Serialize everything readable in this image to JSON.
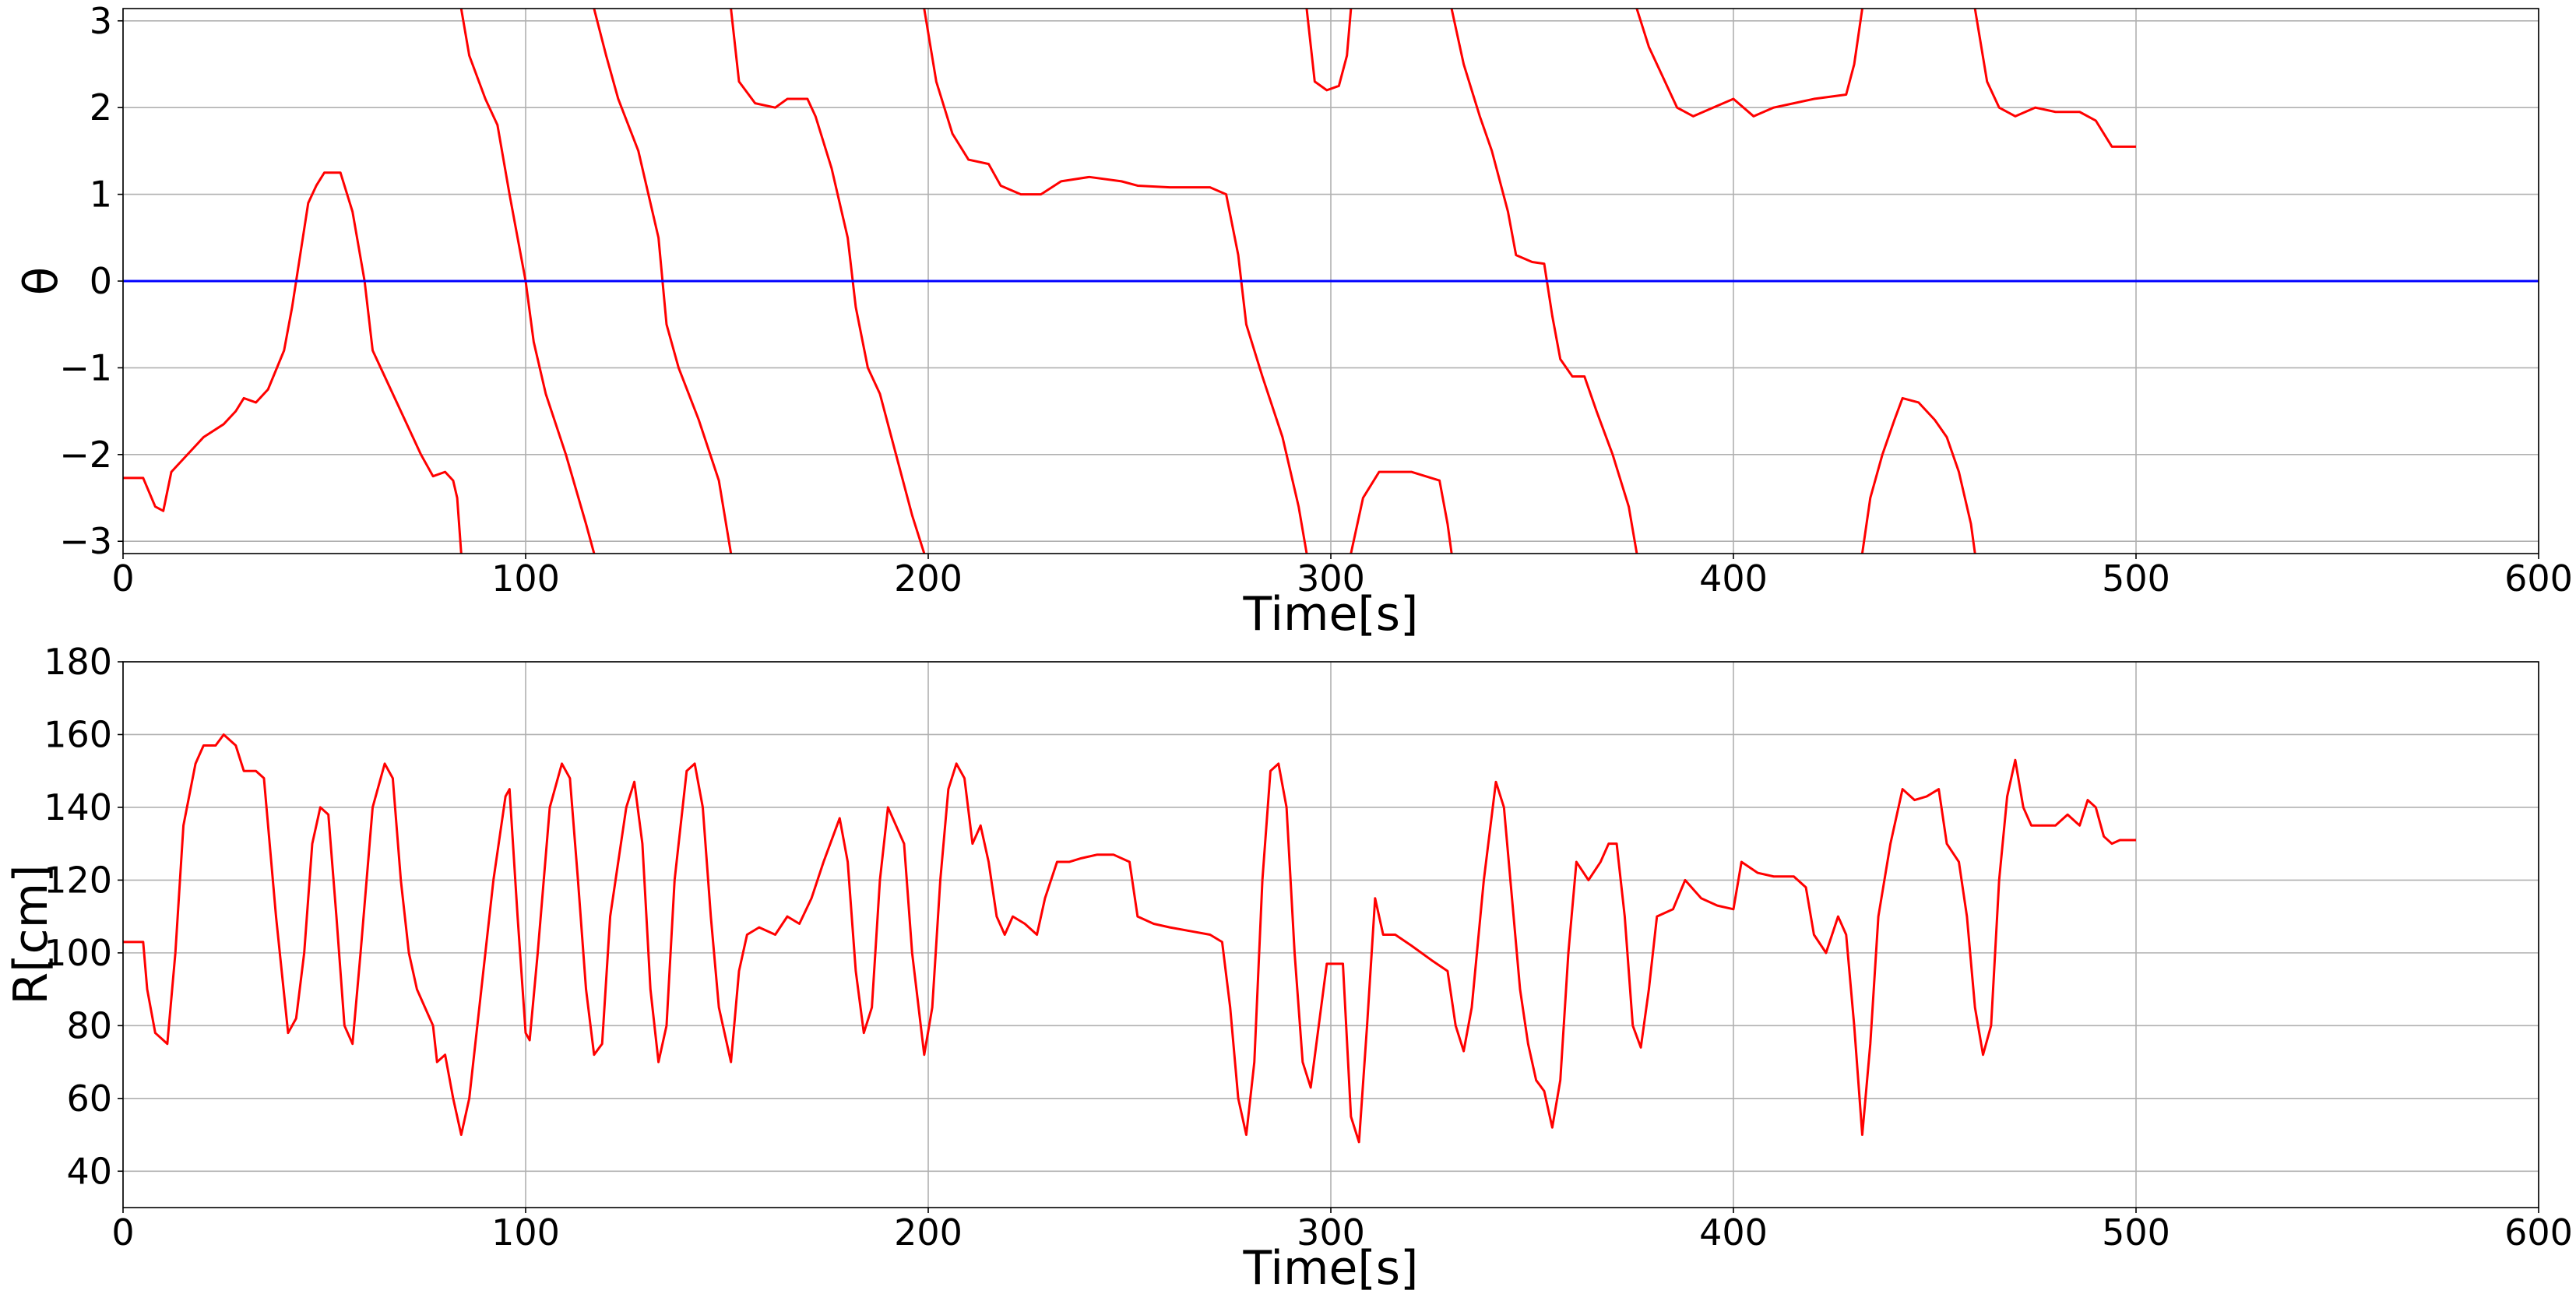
{
  "chart_data": [
    {
      "type": "line",
      "xlabel": "Time[s]",
      "ylabel": "θ",
      "xlim": [
        0,
        600
      ],
      "xticks": [
        0,
        100,
        200,
        300,
        400,
        500,
        600
      ],
      "ylim": [
        -3.1416,
        3.1416
      ],
      "yticks": [
        {
          "value": -3,
          "label": "−3"
        },
        {
          "value": -2,
          "label": "−2"
        },
        {
          "value": -1,
          "label": "−1"
        },
        0,
        1,
        2,
        3
      ],
      "grid": true,
      "x": [
        0,
        5,
        8,
        10,
        12,
        15,
        20,
        25,
        28,
        30,
        33,
        36,
        40,
        42,
        44,
        46,
        48,
        50,
        54,
        57,
        60,
        62,
        66,
        70,
        74,
        77,
        80,
        82,
        83,
        84,
        84,
        84,
        86,
        90,
        93,
        96,
        100,
        102,
        105,
        110,
        115,
        117,
        117,
        117,
        120,
        123,
        128,
        133,
        135,
        138,
        143,
        148,
        151,
        151,
        151,
        153,
        157,
        162,
        165,
        170,
        172,
        176,
        180,
        182,
        185,
        188,
        192,
        196,
        199,
        199,
        199,
        202,
        206,
        210,
        215,
        218,
        223,
        228,
        233,
        240,
        248,
        252,
        260,
        270,
        274,
        277,
        279,
        283,
        288,
        292,
        294,
        294,
        294,
        296,
        299,
        302,
        304,
        305,
        305,
        305,
        308,
        312,
        320,
        327,
        329,
        330,
        330,
        330,
        333,
        337,
        340,
        344,
        346,
        350,
        353,
        355,
        357,
        360,
        363,
        366,
        370,
        374,
        376,
        376,
        376,
        379,
        383,
        386,
        390,
        395,
        400,
        405,
        410,
        415,
        420,
        428,
        430,
        432,
        432,
        432,
        434,
        437,
        440,
        442,
        446,
        450,
        453,
        456,
        459,
        460,
        460,
        460,
        463,
        466,
        470,
        475,
        480,
        486,
        490,
        494,
        500
      ],
      "series": [
        {
          "color": "#ff0000",
          "values": [
            -2.27,
            -2.27,
            -2.6,
            -2.65,
            -2.2,
            -2.05,
            -1.8,
            -1.65,
            -1.5,
            -1.35,
            -1.4,
            -1.25,
            -0.8,
            -0.3,
            0.3,
            0.9,
            1.1,
            1.25,
            1.25,
            0.8,
            0,
            -0.8,
            -1.2,
            -1.6,
            -2.0,
            -2.25,
            -2.2,
            -2.3,
            -2.5,
            -3.14,
            null,
            3.14,
            2.6,
            2.1,
            1.8,
            1.0,
            0,
            -0.7,
            -1.3,
            -2.0,
            -2.8,
            -3.14,
            null,
            3.14,
            2.6,
            2.1,
            1.5,
            0.5,
            -0.5,
            -1.0,
            -1.6,
            -2.3,
            -3.14,
            null,
            3.14,
            2.3,
            2.05,
            2.0,
            2.1,
            2.1,
            1.9,
            1.3,
            0.5,
            -0.3,
            -1.0,
            -1.3,
            -2.0,
            -2.7,
            -3.14,
            null,
            3.14,
            2.3,
            1.7,
            1.4,
            1.35,
            1.1,
            1.0,
            1.0,
            1.15,
            1.2,
            1.15,
            1.1,
            1.08,
            1.08,
            1.0,
            0.3,
            -0.5,
            -1.1,
            -1.8,
            -2.6,
            -3.14,
            null,
            3.14,
            2.3,
            2.2,
            2.25,
            2.6,
            3.14,
            null,
            -3.14,
            -2.5,
            -2.2,
            -2.2,
            -2.3,
            -2.8,
            -3.14,
            null,
            3.14,
            2.5,
            1.9,
            1.5,
            0.8,
            0.3,
            0.22,
            0.2,
            -0.4,
            -0.9,
            -1.1,
            -1.1,
            -1.5,
            -2.0,
            -2.6,
            -3.14,
            null,
            3.14,
            2.7,
            2.3,
            2.0,
            1.9,
            2.0,
            2.1,
            1.9,
            2.0,
            2.05,
            2.1,
            2.15,
            2.5,
            3.14,
            null,
            -3.14,
            -2.5,
            -2.0,
            -1.6,
            -1.35,
            -1.4,
            -1.6,
            -1.8,
            -2.2,
            -2.8,
            -3.14,
            null,
            3.14,
            2.3,
            2.0,
            1.9,
            2.0,
            1.95,
            1.95,
            1.85,
            1.55,
            1.55
          ]
        },
        {
          "color": "#0000ff",
          "x": [
            0,
            600
          ],
          "values": [
            0,
            0
          ]
        }
      ]
    },
    {
      "type": "line",
      "xlabel": "Time[s]",
      "ylabel": "R[cm]",
      "xlim": [
        0,
        600
      ],
      "xticks": [
        0,
        100,
        200,
        300,
        400,
        500,
        600
      ],
      "ylim": [
        30,
        180
      ],
      "yticks": [
        40,
        60,
        80,
        100,
        120,
        140,
        160,
        180
      ],
      "grid": true,
      "x": [
        0,
        5,
        6,
        8,
        10,
        11,
        13,
        15,
        18,
        20,
        23,
        25,
        28,
        30,
        33,
        35,
        38,
        41,
        43,
        45,
        47,
        49,
        51,
        53,
        55,
        57,
        59,
        62,
        65,
        67,
        69,
        71,
        73,
        75,
        77,
        78,
        80,
        82,
        84,
        86,
        89,
        92,
        95,
        96,
        98,
        100,
        101,
        103,
        106,
        109,
        111,
        113,
        115,
        117,
        119,
        121,
        123,
        125,
        127,
        129,
        131,
        133,
        135,
        137,
        140,
        142,
        144,
        146,
        148,
        151,
        153,
        155,
        158,
        162,
        165,
        168,
        171,
        174,
        178,
        180,
        182,
        184,
        186,
        188,
        190,
        192,
        194,
        196,
        199,
        201,
        203,
        205,
        207,
        209,
        211,
        213,
        215,
        217,
        219,
        221,
        224,
        227,
        229,
        232,
        235,
        238,
        242,
        246,
        250,
        252,
        256,
        260,
        265,
        270,
        273,
        275,
        277,
        279,
        281,
        283,
        285,
        287,
        289,
        291,
        293,
        295,
        297,
        299,
        303,
        305,
        307,
        309,
        311,
        313,
        316,
        320,
        325,
        329,
        331,
        333,
        335,
        338,
        341,
        343,
        345,
        347,
        349,
        351,
        353,
        355,
        357,
        359,
        361,
        364,
        367,
        369,
        371,
        373,
        375,
        377,
        379,
        381,
        385,
        388,
        392,
        396,
        400,
        402,
        406,
        410,
        415,
        418,
        420,
        423,
        426,
        428,
        430,
        432,
        434,
        436,
        439,
        442,
        445,
        448,
        451,
        453,
        456,
        458,
        460,
        462,
        464,
        466,
        468,
        470,
        472,
        474,
        477,
        480,
        483,
        486,
        488,
        490,
        492,
        494,
        496,
        500
      ],
      "series": [
        {
          "color": "#ff0000",
          "values": [
            103,
            103,
            90,
            78,
            76,
            75,
            100,
            135,
            152,
            157,
            157,
            160,
            157,
            150,
            150,
            148,
            110,
            78,
            82,
            100,
            130,
            140,
            138,
            110,
            80,
            75,
            100,
            140,
            152,
            148,
            120,
            100,
            90,
            85,
            80,
            70,
            72,
            60,
            50,
            60,
            90,
            120,
            143,
            145,
            110,
            78,
            76,
            100,
            140,
            152,
            148,
            120,
            90,
            72,
            75,
            110,
            125,
            140,
            147,
            130,
            90,
            70,
            80,
            120,
            150,
            152,
            140,
            110,
            85,
            70,
            95,
            105,
            107,
            105,
            110,
            108,
            115,
            125,
            137,
            125,
            95,
            78,
            85,
            120,
            140,
            135,
            130,
            100,
            72,
            85,
            120,
            145,
            152,
            148,
            130,
            135,
            125,
            110,
            105,
            110,
            108,
            105,
            115,
            125,
            125,
            126,
            127,
            127,
            125,
            110,
            108,
            107,
            106,
            105,
            103,
            85,
            60,
            50,
            70,
            120,
            150,
            152,
            140,
            100,
            70,
            63,
            80,
            97,
            97,
            55,
            48,
            80,
            115,
            105,
            105,
            102,
            98,
            95,
            80,
            73,
            85,
            120,
            147,
            140,
            115,
            90,
            75,
            65,
            62,
            52,
            65,
            100,
            125,
            120,
            125,
            130,
            130,
            110,
            80,
            74,
            90,
            110,
            112,
            120,
            115,
            113,
            112,
            125,
            122,
            121,
            121,
            118,
            105,
            100,
            110,
            105,
            80,
            50,
            75,
            110,
            130,
            145,
            142,
            143,
            145,
            130,
            125,
            110,
            85,
            72,
            80,
            120,
            143,
            153,
            140,
            135,
            135,
            135,
            138,
            135,
            142,
            140,
            132,
            130,
            131,
            131
          ]
        }
      ]
    }
  ]
}
